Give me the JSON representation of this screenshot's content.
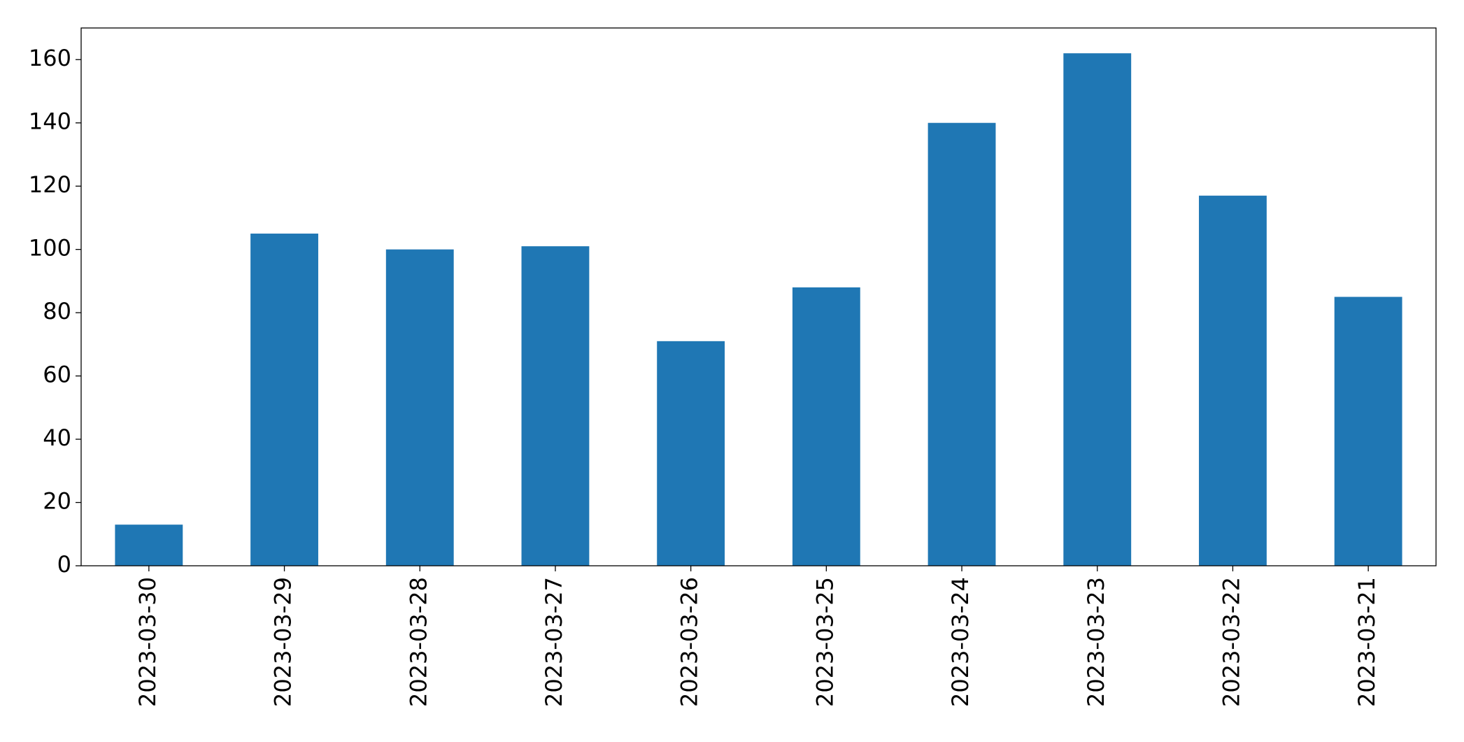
{
  "chart_data": {
    "type": "bar",
    "categories": [
      "2023-03-30",
      "2023-03-29",
      "2023-03-28",
      "2023-03-27",
      "2023-03-26",
      "2023-03-25",
      "2023-03-24",
      "2023-03-23",
      "2023-03-22",
      "2023-03-21"
    ],
    "values": [
      13,
      105,
      100,
      101,
      71,
      88,
      140,
      162,
      117,
      85
    ],
    "color": "#1f77b4",
    "ylim": [
      0,
      170
    ],
    "yticks": [
      0,
      20,
      40,
      60,
      80,
      100,
      120,
      140,
      160
    ],
    "grid": false
  }
}
